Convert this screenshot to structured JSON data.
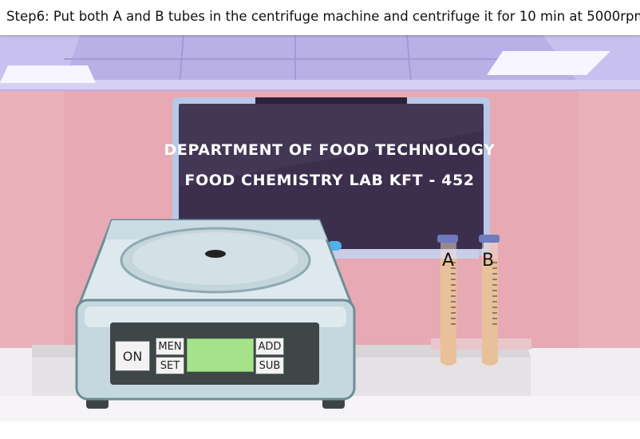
{
  "instruction": {
    "step_text": "Step6: Put both A and B tubes in the centrifuge machine and centrifuge it for 10 min at 5000rpm"
  },
  "board": {
    "line1": "DEPARTMENT OF FOOD TECHNOLOGY",
    "line2": "FOOD CHEMISTRY LAB KFT - 452"
  },
  "machine": {
    "on_label": "ON",
    "men_label": "MEN",
    "set_label": "SET",
    "add_label": "ADD",
    "sub_label": "SUB",
    "display_value": ""
  },
  "tubes": [
    {
      "label": "A"
    },
    {
      "label": "B"
    }
  ],
  "colors": {
    "wall": "#e7a9b3",
    "ceiling": "#b9b0e6",
    "board": "#3b2f4d",
    "lcd": "#a6e28a",
    "tube_liquid": "#e8c09a",
    "tube_cap": "#6f7bbd"
  }
}
